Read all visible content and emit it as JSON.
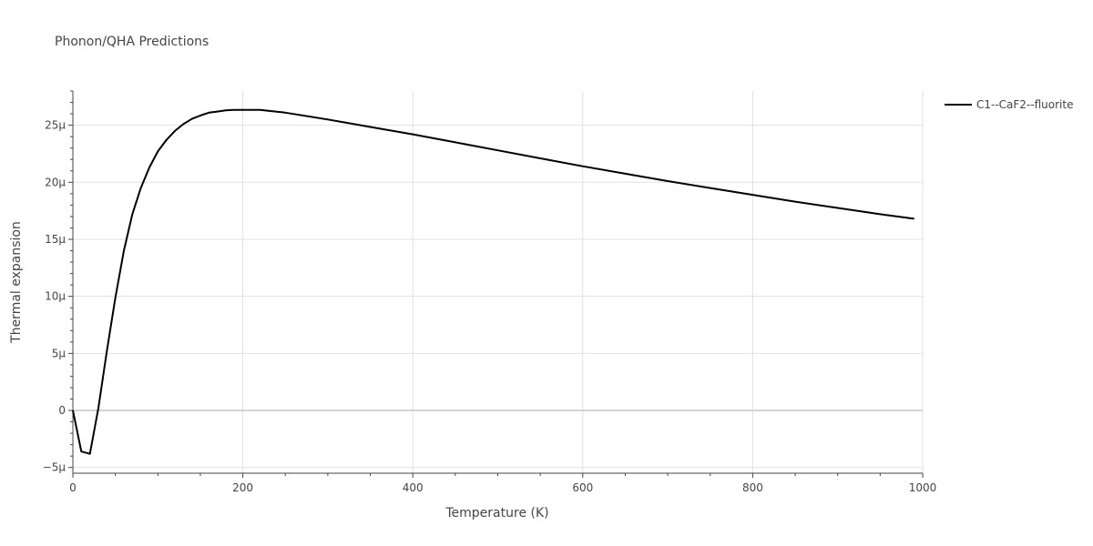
{
  "chart_data": {
    "type": "line",
    "title": "Phonon/QHA Predictions",
    "xlabel": "Temperature (K)",
    "ylabel": "Thermal expansion",
    "xlim": [
      0,
      1000
    ],
    "ylim": [
      -5.5e-06,
      2.8e-05
    ],
    "x_ticks": [
      0,
      200,
      400,
      600,
      800,
      1000
    ],
    "x_tick_labels": [
      "0",
      "200",
      "400",
      "600",
      "800",
      "1000"
    ],
    "y_ticks": [
      -5e-06,
      0,
      5e-06,
      1e-05,
      1.5e-05,
      2e-05,
      2.5e-05
    ],
    "y_tick_labels": [
      "−5μ",
      "0",
      "5μ",
      "10μ",
      "15μ",
      "20μ",
      "25μ"
    ],
    "grid": true,
    "legend_position": "top-right",
    "series": [
      {
        "name": "C1--CaF2--fluorite",
        "color": "#000000",
        "x": [
          0,
          10,
          20,
          30,
          40,
          50,
          60,
          70,
          80,
          90,
          100,
          110,
          120,
          130,
          140,
          150,
          160,
          170,
          180,
          190,
          200,
          210,
          220,
          250,
          300,
          350,
          400,
          450,
          500,
          550,
          600,
          650,
          700,
          750,
          800,
          850,
          900,
          950,
          990
        ],
        "y": [
          0,
          -3.6e-06,
          -3.8e-06,
          2e-07,
          5.2e-06,
          9.9e-06,
          1.4e-05,
          1.72e-05,
          1.95e-05,
          2.13e-05,
          2.27e-05,
          2.37e-05,
          2.45e-05,
          2.51e-05,
          2.555e-05,
          2.585e-05,
          2.61e-05,
          2.62e-05,
          2.63e-05,
          2.635e-05,
          2.635e-05,
          2.635e-05,
          2.635e-05,
          2.61e-05,
          2.55e-05,
          2.485e-05,
          2.42e-05,
          2.35e-05,
          2.28e-05,
          2.21e-05,
          2.14e-05,
          2.075e-05,
          2.01e-05,
          1.95e-05,
          1.89e-05,
          1.83e-05,
          1.775e-05,
          1.72e-05,
          1.68e-05
        ]
      }
    ]
  }
}
